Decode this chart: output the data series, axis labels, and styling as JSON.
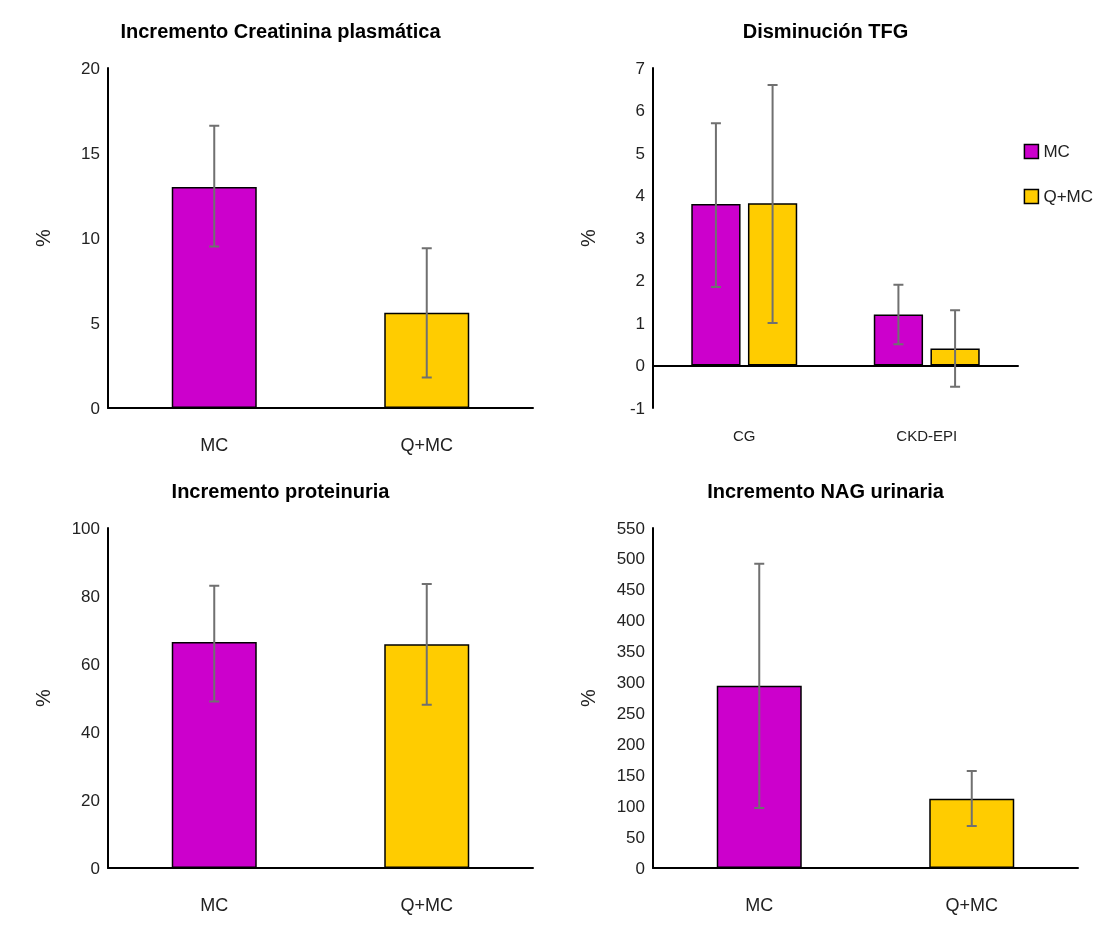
{
  "chart_data": [
    {
      "type": "bar",
      "title": "Incremento Creatinina plasmática",
      "ylabel": "%",
      "categories": [
        "MC",
        "Q+MC"
      ],
      "values": [
        13.0,
        5.6
      ],
      "colors": [
        "#cc00cc",
        "#ffcc00"
      ],
      "errors": [
        [
          9.5,
          16.6
        ],
        [
          1.8,
          9.4
        ]
      ],
      "ylim": [
        0,
        20
      ],
      "yticks": [
        0,
        5,
        10,
        15,
        20
      ],
      "grid": false
    },
    {
      "type": "bar",
      "title": "Disminución TFG",
      "ylabel": "%",
      "categories": [
        "CG",
        "CKD-EPI"
      ],
      "series": [
        {
          "name": "MC",
          "color": "#cc00cc",
          "values": [
            3.8,
            1.2
          ],
          "errors": [
            [
              1.85,
              5.7
            ],
            [
              0.5,
              1.9
            ]
          ]
        },
        {
          "name": "Q+MC",
          "color": "#ffcc00",
          "values": [
            3.82,
            0.4
          ],
          "errors": [
            [
              1.0,
              6.6
            ],
            [
              -0.5,
              1.3
            ]
          ]
        }
      ],
      "ylim": [
        -1,
        7
      ],
      "yticks": [
        -1,
        0,
        1,
        2,
        3,
        4,
        5,
        6,
        7
      ],
      "legend": "right"
    },
    {
      "type": "bar",
      "title": "Incremento proteinuria",
      "ylabel": "%",
      "categories": [
        "MC",
        "Q+MC"
      ],
      "values": [
        66.5,
        65.8
      ],
      "colors": [
        "#cc00cc",
        "#ffcc00"
      ],
      "errors": [
        [
          49,
          83
        ],
        [
          48,
          83.5
        ]
      ],
      "ylim": [
        0,
        100
      ],
      "yticks": [
        0,
        20,
        40,
        60,
        80,
        100
      ],
      "grid": false
    },
    {
      "type": "bar",
      "title": "Incremento NAG urinaria",
      "ylabel": "%",
      "categories": [
        "MC",
        "Q+MC"
      ],
      "values": [
        295,
        112
      ],
      "colors": [
        "#cc00cc",
        "#ffcc00"
      ],
      "errors": [
        [
          97,
          492
        ],
        [
          68,
          157
        ]
      ],
      "ylim": [
        0,
        550
      ],
      "yticks": [
        0,
        50,
        100,
        150,
        200,
        250,
        300,
        350,
        400,
        450,
        500,
        550
      ],
      "grid": false
    }
  ]
}
